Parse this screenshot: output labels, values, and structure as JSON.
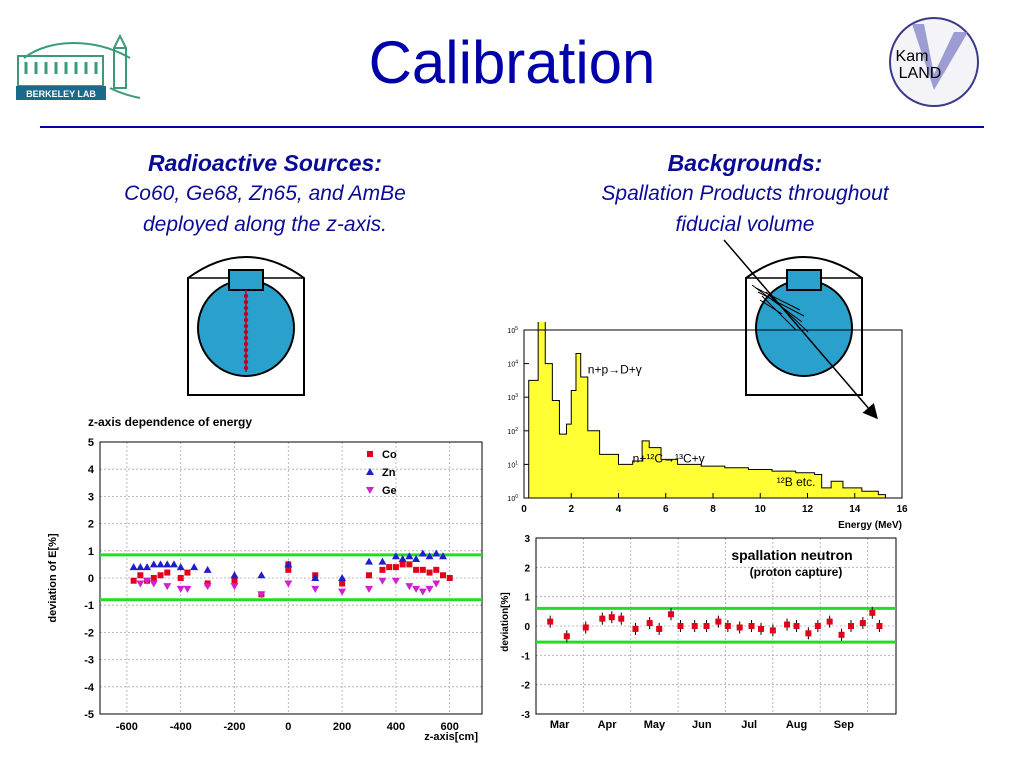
{
  "slide": {
    "title": "Calibration",
    "berkeley_lab_label": "BERKELEY LAB",
    "kamland_logo_line1": "Kam",
    "kamland_logo_line2": "LAND",
    "left": {
      "heading": "Radioactive Sources:",
      "line1": "Co60, Ge68, Zn65, and AmBe",
      "line2": "deployed along the z-axis."
    },
    "right": {
      "heading": "Backgrounds:",
      "line1": "Spallation Products throughout",
      "line2": "fiducial volume"
    }
  },
  "colors": {
    "title": "#0000a8",
    "detector_fill": "#2aa0cc",
    "spectrum_fill": "#ffff33",
    "band": "#22dd22",
    "co": "#e0001a",
    "zn": "#1e1ed0",
    "ge": "#d020d0"
  },
  "chart_data": [
    {
      "type": "scatter",
      "title": "z-axis dependence of energy",
      "xlabel": "z-axis[cm]",
      "ylabel": "deviation of E[%]",
      "xlim": [
        -700,
        720
      ],
      "ylim": [
        -5,
        5
      ],
      "xticks": [
        -600,
        -400,
        -200,
        0,
        200,
        400,
        600
      ],
      "yticks": [
        -5,
        -4,
        -3,
        -2,
        -1,
        0,
        1,
        2,
        3,
        4,
        5
      ],
      "grid": true,
      "legend_placement": "top-right",
      "bands": [
        0.85,
        -0.8
      ],
      "series": [
        {
          "name": "Co",
          "marker": "square",
          "x": [
            -575,
            -550,
            -525,
            -500,
            -475,
            -450,
            -400,
            -375,
            -300,
            -200,
            -100,
            0,
            0,
            100,
            200,
            300,
            350,
            375,
            400,
            425,
            450,
            475,
            500,
            525,
            550,
            575,
            600
          ],
          "y": [
            -0.1,
            0.1,
            -0.1,
            0.0,
            0.1,
            0.2,
            0.0,
            0.2,
            -0.2,
            -0.1,
            -0.6,
            0.5,
            0.3,
            0.1,
            -0.2,
            0.1,
            0.3,
            0.4,
            0.4,
            0.5,
            0.5,
            0.3,
            0.3,
            0.2,
            0.3,
            0.1,
            0.0
          ]
        },
        {
          "name": "Zn",
          "marker": "triangle-up",
          "x": [
            -575,
            -550,
            -525,
            -500,
            -475,
            -450,
            -425,
            -400,
            -350,
            -300,
            -200,
            -100,
            0,
            100,
            200,
            300,
            350,
            400,
            425,
            450,
            475,
            500,
            525,
            550,
            575
          ],
          "y": [
            0.4,
            0.4,
            0.4,
            0.5,
            0.5,
            0.5,
            0.5,
            0.4,
            0.4,
            0.3,
            0.1,
            0.1,
            0.5,
            0.0,
            0.0,
            0.6,
            0.6,
            0.8,
            0.7,
            0.8,
            0.7,
            0.9,
            0.8,
            0.9,
            0.8
          ]
        },
        {
          "name": "Ge",
          "marker": "triangle-down",
          "x": [
            -550,
            -525,
            -500,
            -450,
            -400,
            -375,
            -300,
            -200,
            -100,
            0,
            100,
            200,
            300,
            350,
            400,
            450,
            475,
            500,
            525,
            550
          ],
          "y": [
            -0.2,
            -0.1,
            -0.2,
            -0.3,
            -0.4,
            -0.4,
            -0.3,
            -0.3,
            -0.6,
            -0.2,
            -0.4,
            -0.5,
            -0.4,
            -0.1,
            -0.1,
            -0.3,
            -0.4,
            -0.5,
            -0.4,
            -0.2
          ]
        }
      ]
    },
    {
      "type": "area",
      "title": "",
      "xlabel": "Energy (MeV)",
      "ylabel": "",
      "xlim": [
        0,
        16
      ],
      "ylim_log": [
        0,
        5
      ],
      "log_y": true,
      "xticks": [
        0,
        2,
        4,
        6,
        8,
        10,
        12,
        14,
        16
      ],
      "yticks_exp": [
        0,
        1,
        2,
        3,
        4,
        5
      ],
      "annotations": [
        {
          "text": "n+p→D+γ",
          "x": 2.7,
          "y": 3.7
        },
        {
          "text": "n+¹²C→¹³C+γ",
          "x": 4.6,
          "y": 1.05
        },
        {
          "text": "¹²B etc.",
          "x": 10.7,
          "y": 0.35
        }
      ],
      "spectrum": [
        [
          0.2,
          3.5
        ],
        [
          0.6,
          5.3
        ],
        [
          0.9,
          4.0
        ],
        [
          1.2,
          2.9
        ],
        [
          1.5,
          1.9
        ],
        [
          1.8,
          2.2
        ],
        [
          2.0,
          3.2
        ],
        [
          2.2,
          4.3
        ],
        [
          2.4,
          3.6
        ],
        [
          2.7,
          2.0
        ],
        [
          3.2,
          1.3
        ],
        [
          4.0,
          1.0
        ],
        [
          4.6,
          1.1
        ],
        [
          5.0,
          1.7
        ],
        [
          5.3,
          1.5
        ],
        [
          5.8,
          1.15
        ],
        [
          6.5,
          1.0
        ],
        [
          7.5,
          0.95
        ],
        [
          8.5,
          0.9
        ],
        [
          9.5,
          0.85
        ],
        [
          10.5,
          0.8
        ],
        [
          11.5,
          0.75
        ],
        [
          12.3,
          0.7
        ],
        [
          12.6,
          0.3
        ],
        [
          13.0,
          0.5
        ],
        [
          13.5,
          0.3
        ],
        [
          14.3,
          0.2
        ],
        [
          15.0,
          0.1
        ]
      ]
    },
    {
      "type": "scatter",
      "title": "spallation neutron",
      "subtitle": "(proton capture)",
      "xlabel": "",
      "ylabel": "deviation[%]",
      "xlim": [
        0,
        7.6
      ],
      "ylim": [
        -3,
        3
      ],
      "categories": [
        "Mar",
        "Apr",
        "May",
        "Jun",
        "Jul",
        "Aug",
        "Sep"
      ],
      "yticks": [
        -3,
        -2,
        -1,
        0,
        1,
        2,
        3
      ],
      "grid": true,
      "bands": [
        0.6,
        -0.55
      ],
      "points": {
        "x": [
          0.3,
          0.65,
          1.05,
          1.4,
          1.6,
          1.8,
          2.1,
          2.4,
          2.6,
          2.85,
          3.05,
          3.35,
          3.6,
          3.85,
          4.05,
          4.3,
          4.55,
          4.75,
          5.0,
          5.3,
          5.5,
          5.75,
          5.95,
          6.2,
          6.45,
          6.65,
          6.9,
          7.1,
          7.25
        ],
        "y": [
          0.15,
          -0.35,
          -0.05,
          0.25,
          0.3,
          0.25,
          -0.1,
          0.1,
          -0.1,
          0.4,
          0.0,
          0.0,
          0.0,
          0.15,
          0.0,
          -0.05,
          0.0,
          -0.1,
          -0.15,
          0.05,
          0.0,
          -0.25,
          0.0,
          0.15,
          -0.3,
          0.0,
          0.1,
          0.45,
          0.0
        ]
      }
    }
  ]
}
